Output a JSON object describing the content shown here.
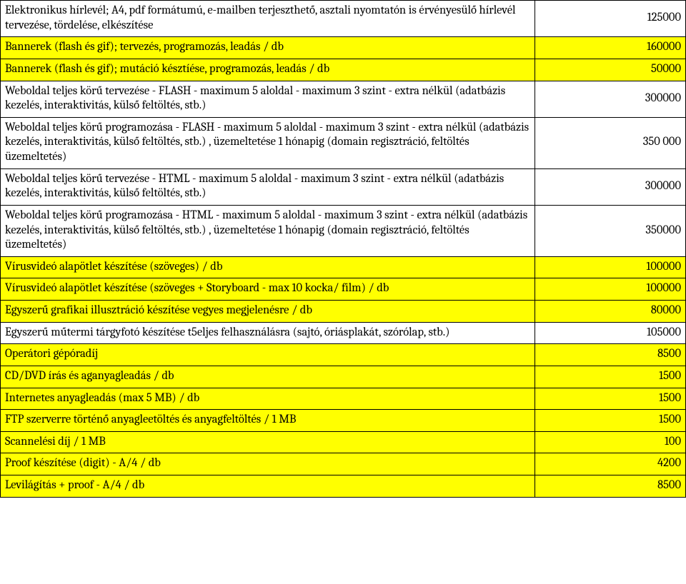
{
  "table": {
    "columns": [
      "desc",
      "val"
    ],
    "col_widths_pct": [
      78,
      22
    ],
    "border_color": "#000000",
    "background_color": "#ffffff",
    "highlight_color": "#ffff00",
    "font_family": "Cambria, serif",
    "font_size_pt": 12,
    "text_color": "#000000",
    "rows": [
      {
        "highlight": false,
        "desc": "Elektronikus hírlevél; A4, pdf formátumú, e-mailben terjeszthető, asztali nyomtatón is érvényesülő hírlevél tervezése, tördelése, elkészítése",
        "val": "125000"
      },
      {
        "highlight": true,
        "desc": "Bannerek (flash és gif); tervezés, programozás, leadás / db",
        "val": "160000"
      },
      {
        "highlight": true,
        "desc": "Bannerek (flash és gif); mutáció késztíése, programozás, leadás / db",
        "val": "50000"
      },
      {
        "highlight": false,
        "desc": "Weboldal teljes körű tervezése - FLASH - maximum 5 aloldal - maximum 3 szint - extra nélkül (adatbázis kezelés, interaktivitás, külső feltöltés, stb.)",
        "val": "300000"
      },
      {
        "highlight": false,
        "desc": "Weboldal teljes körű programozása - FLASH - maximum 5 aloldal - maximum 3 szint - extra nélkül (adatbázis kezelés, interaktivitás, külső feltöltés, stb.) , üzemeltetése 1 hónapig (domain regisztráció, feltöltés üzemeltetés)",
        "val": "350 000"
      },
      {
        "highlight": false,
        "desc": "Weboldal teljes körű tervezése - HTML - maximum 5 aloldal - maximum 3 szint - extra nélkül (adatbázis kezelés, interaktivitás, külső feltöltés, stb.)",
        "val": "300000"
      },
      {
        "highlight": false,
        "desc": "Weboldal teljes körű programozása - HTML - maximum 5 aloldal - maximum 3 szint - extra nélkül (adatbázis kezelés, interaktivitás, külső feltöltés, stb.) , üzemeltetése 1 hónapig (domain regisztráció, feltöltés üzemeltetés)",
        "val": "350000"
      },
      {
        "highlight": true,
        "desc": "Vírusvideó alapötlet készítése (szöveges) / db",
        "val": "100000"
      },
      {
        "highlight": true,
        "desc": "Vírusvideó alapötlet készítése (szöveges + Storyboard - max 10 kocka/ film) / db",
        "val": "100000"
      },
      {
        "highlight": true,
        "desc": "Egyszerű grafikai illusztráció készítése vegyes megjelenésre / db",
        "val": "80000"
      },
      {
        "highlight": false,
        "desc": "Egyszerű műtermi tárgyfotó készítése t5eljes felhasználásra (sajtó, óriásplakát, szórólap, stb.)",
        "val": "105000"
      },
      {
        "highlight": true,
        "desc": "Operátori gépóradíj",
        "val": "8500"
      },
      {
        "highlight": true,
        "desc": "CD/DVD írás és aganyagleadás / db",
        "val": "1500"
      },
      {
        "highlight": true,
        "desc": "Internetes anyagleadás (max 5 MB) / db",
        "val": "1500"
      },
      {
        "highlight": true,
        "desc": "FTP szerverre történő anyagleetöltés és anyagfeltöltés / 1 MB",
        "val": "1500"
      },
      {
        "highlight": true,
        "desc": "Scannelési díj / 1 MB",
        "val": "100"
      },
      {
        "highlight": true,
        "desc": "Proof készítése (digit) - A/4 / db",
        "val": "4200"
      },
      {
        "highlight": true,
        "desc": "Levilágítás + proof - A/4 / db",
        "val": "8500"
      }
    ]
  }
}
